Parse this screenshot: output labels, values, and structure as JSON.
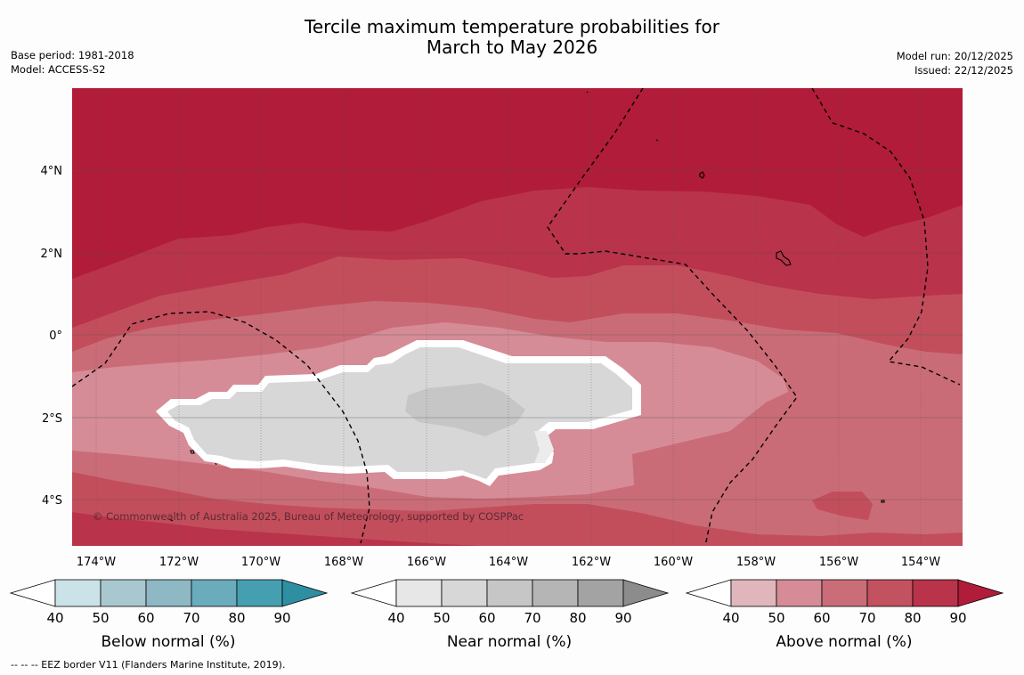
{
  "title_line1": "Tercile maximum temperature probabilities for",
  "title_line2": "March to May 2026",
  "base_period": "Base period: 1981-2018",
  "model": "Model: ACCESS-S2",
  "model_run": "Model run: 20/12/2025",
  "issued": "Issued: 22/12/2025",
  "copyright": "© Commonwealth of Australia 2025, Bureau of Meteorology, supported by COSPPac",
  "footnote": "--  --  -- EEZ border V11 (Flanders Marine Institute, 2019).",
  "lat_labels": [
    "4°N",
    "2°N",
    "0°",
    "2°S",
    "4°S"
  ],
  "lon_labels": [
    "174°W",
    "172°W",
    "170°W",
    "168°W",
    "166°W",
    "164°W",
    "162°W",
    "160°W",
    "158°W",
    "156°W",
    "154°W"
  ],
  "colorbars": [
    {
      "title": "Below normal (%)",
      "ticks": [
        "40",
        "50",
        "60",
        "70",
        "80",
        "90"
      ],
      "colors": [
        "#ffffff",
        "#cae2e8",
        "#a9c7ce",
        "#8db8c4",
        "#6aacbb",
        "#469fb1",
        "#2e8fa3"
      ]
    },
    {
      "title": "Near normal (%)",
      "ticks": [
        "40",
        "50",
        "60",
        "70",
        "80",
        "90"
      ],
      "colors": [
        "#ffffff",
        "#e7e7e7",
        "#d7d7d7",
        "#c6c6c6",
        "#b5b5b5",
        "#a3a3a3",
        "#8c8c8c"
      ]
    },
    {
      "title": "Above normal (%)",
      "ticks": [
        "40",
        "50",
        "60",
        "70",
        "80",
        "90"
      ],
      "colors": [
        "#ffffff",
        "#e1b5bc",
        "#d58c97",
        "#ca6d78",
        "#c25260",
        "#b9334a",
        "#b01c39"
      ]
    }
  ],
  "map_colors": {
    "above_90": "#b01c39",
    "above_80": "#b9334a",
    "above_70": "#c24e5c",
    "above_60": "#ca6c77",
    "above_50": "#d58c97",
    "near_50": "#d7d7d7",
    "near_60": "#c6c6c6"
  }
}
